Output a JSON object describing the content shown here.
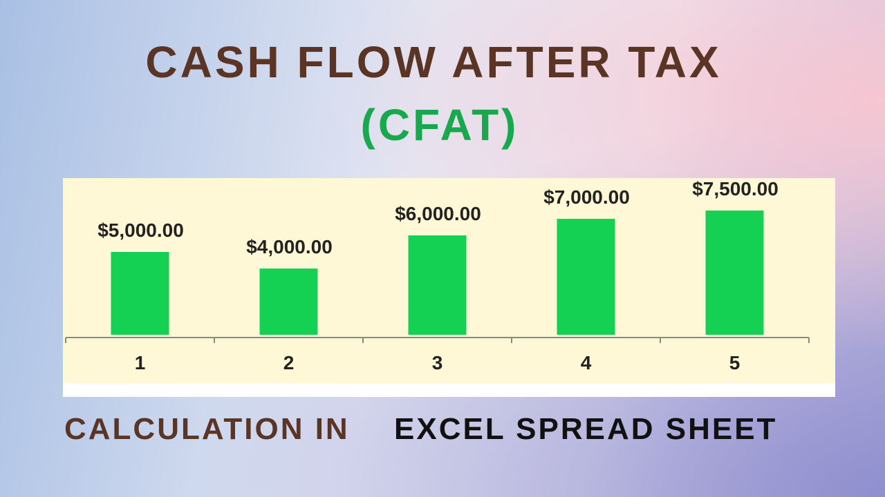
{
  "chart_data": {
    "type": "bar",
    "title": "CASH FLOW AFTER TAX",
    "subtitle": "(CFAT)",
    "categories": [
      "1",
      "2",
      "3",
      "4",
      "5"
    ],
    "values": [
      5000,
      4000,
      6000,
      7000,
      7500
    ],
    "value_labels": [
      "$5,000.00",
      "$4,000.00",
      "$6,000.00",
      "$7,000.00",
      "$7,500.00"
    ],
    "color": "#14d154"
  },
  "caption": {
    "lead": "CALCULATION IN",
    "tail": "EXCEL SPREAD SHEET"
  }
}
